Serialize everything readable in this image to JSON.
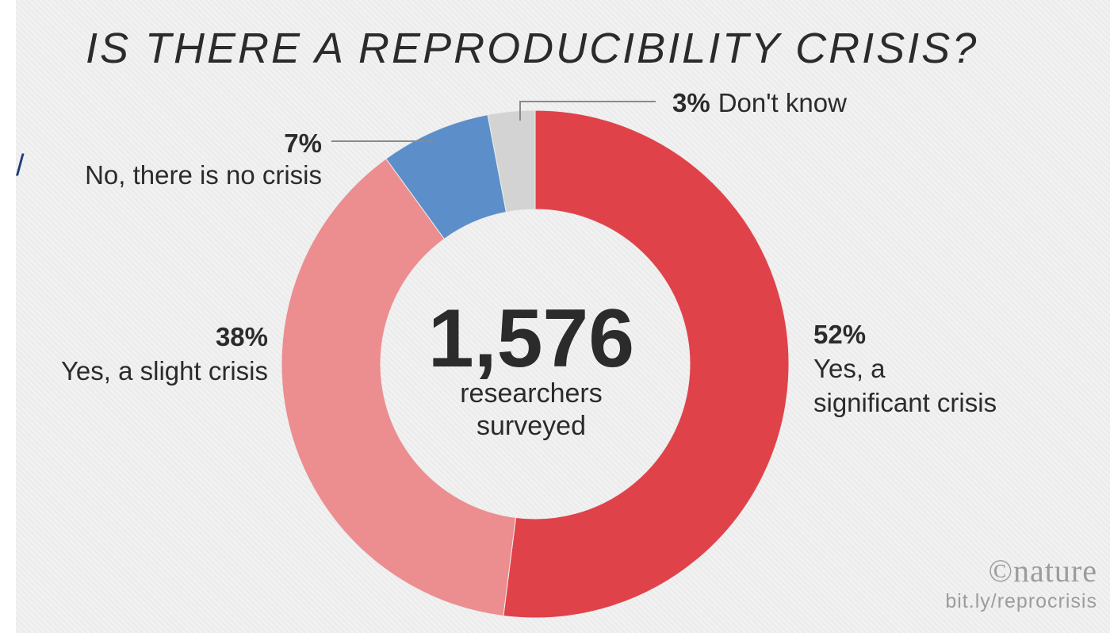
{
  "chart_data": {
    "type": "pie",
    "title": "IS THERE A REPRODUCIBILITY CRISIS?",
    "center": {
      "value": "1,576",
      "line1": "researchers",
      "line2": "surveyed"
    },
    "slices": [
      {
        "percent_label": "52%",
        "value": 52,
        "label_line1": "Yes, a",
        "label_line2": "significant crisis",
        "color": "#e0424a"
      },
      {
        "percent_label": "38%",
        "value": 38,
        "label_line1": "Yes, a slight crisis",
        "label_line2": "",
        "color": "#ec8d90"
      },
      {
        "percent_label": "7%",
        "value": 7,
        "label_line1": "No, there is no crisis",
        "label_line2": "",
        "color": "#5c8ec9"
      },
      {
        "percent_label": "3%",
        "value": 3,
        "label_line1": "Don't know",
        "label_line2": "",
        "color": "#d3d3d3"
      }
    ]
  },
  "branding": {
    "name": "©nature",
    "url": "bit.ly/reprocrisis"
  }
}
